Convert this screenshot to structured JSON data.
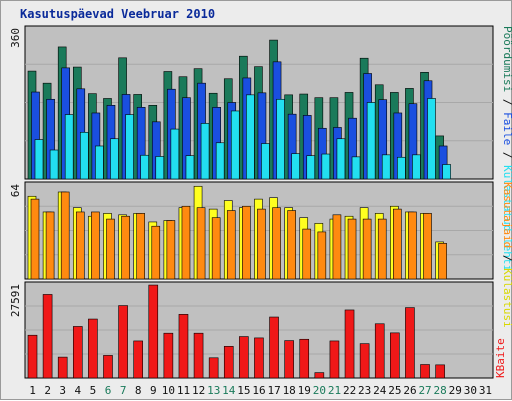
{
  "title": "Kasutuspäevad Veebruar 2010",
  "chart_data": [
    {
      "type": "bar",
      "name_panel": "top",
      "ytick_max": "360",
      "ylim": [
        0,
        380
      ],
      "categories": [
        "1",
        "2",
        "3",
        "4",
        "5",
        "6",
        "7",
        "8",
        "9",
        "10",
        "11",
        "12",
        "13",
        "14",
        "15",
        "16",
        "17",
        "18",
        "19",
        "20",
        "21",
        "22",
        "23",
        "24",
        "25",
        "26",
        "27",
        "28",
        "29",
        "30",
        "31"
      ],
      "series": [
        {
          "name": "Pöördumisi",
          "color": "#1a7a5a",
          "values": [
            268,
            238,
            328,
            278,
            212,
            200,
            301,
            210,
            183,
            267,
            254,
            274,
            213,
            249,
            305,
            279,
            345,
            209,
            211,
            202,
            202,
            215,
            300,
            234,
            215,
            225,
            265,
            107,
            null,
            null,
            null
          ]
        },
        {
          "name": "Faile",
          "color": "#1a4fe0",
          "values": [
            216,
            198,
            276,
            224,
            164,
            183,
            210,
            178,
            142,
            223,
            202,
            238,
            178,
            190,
            251,
            214,
            291,
            161,
            158,
            126,
            128,
            151,
            262,
            197,
            164,
            187,
            244,
            82,
            null,
            null,
            null
          ]
        },
        {
          "name": "Külastatud lehti",
          "color": "#22dff0",
          "values": [
            98,
            72,
            160,
            116,
            82,
            100,
            160,
            59,
            56,
            124,
            58,
            138,
            90,
            169,
            209,
            88,
            198,
            63,
            58,
            62,
            100,
            55,
            190,
            60,
            54,
            60,
            200,
            36,
            null,
            null,
            null
          ]
        }
      ],
      "legend_label": "Pöördumisi / Faile / Külastatud lehti",
      "legend_colors": {
        "Pöördumisi": "#1a7a5a",
        "Faile": "#1a4fe0",
        "Külastatud lehti": "#22dff0"
      }
    },
    {
      "type": "bar",
      "name_panel": "middle",
      "ytick_max": "64",
      "ylim": [
        0,
        68
      ],
      "categories": [
        "1",
        "2",
        "3",
        "4",
        "5",
        "6",
        "7",
        "8",
        "9",
        "10",
        "11",
        "12",
        "13",
        "14",
        "15",
        "16",
        "17",
        "18",
        "19",
        "20",
        "21",
        "22",
        "23",
        "24",
        "25",
        "26",
        "27",
        "28",
        "29",
        "30",
        "31"
      ],
      "series": [
        {
          "name": "Külastusi",
          "color": "#ffff20",
          "values": [
            58,
            47,
            61,
            50,
            44,
            46,
            45,
            46,
            40,
            41,
            50,
            65,
            49,
            55,
            50,
            56,
            57,
            50,
            43,
            39,
            42,
            44,
            50,
            46,
            51,
            47,
            46,
            26,
            null,
            null,
            null
          ]
        },
        {
          "name": "Kasutajaid",
          "color": "#ff8a10",
          "values": [
            56,
            47,
            61,
            47,
            47,
            42,
            44,
            46,
            37,
            41,
            51,
            50,
            43,
            48,
            51,
            49,
            50,
            48,
            35,
            33,
            45,
            42,
            42,
            42,
            49,
            47,
            46,
            25,
            null,
            null,
            null
          ]
        }
      ],
      "legend_label": "Kasutajaid / Külastusi"
    },
    {
      "type": "bar",
      "name_panel": "bottom",
      "ytick_max": "27591",
      "ylim": [
        0,
        28500
      ],
      "categories": [
        "1",
        "2",
        "3",
        "4",
        "5",
        "6",
        "7",
        "8",
        "9",
        "10",
        "11",
        "12",
        "13",
        "14",
        "15",
        "16",
        "17",
        "18",
        "19",
        "20",
        "21",
        "22",
        "23",
        "24",
        "25",
        "26",
        "27",
        "28",
        "29",
        "30",
        "31"
      ],
      "series": [
        {
          "name": "KBaite",
          "color": "#f01818",
          "values": [
            12700,
            24800,
            6200,
            15300,
            17500,
            6700,
            21500,
            11000,
            27591,
            13300,
            18900,
            13300,
            6000,
            9400,
            12300,
            11900,
            18100,
            11100,
            11500,
            1600,
            11000,
            20200,
            10200,
            16100,
            13400,
            20900,
            4000,
            3900,
            null,
            null,
            null
          ]
        }
      ],
      "legend_label": "KBaite"
    }
  ],
  "xaxis": {
    "days": [
      "1",
      "2",
      "3",
      "4",
      "5",
      "6",
      "7",
      "8",
      "9",
      "10",
      "11",
      "12",
      "13",
      "14",
      "15",
      "16",
      "17",
      "18",
      "19",
      "20",
      "21",
      "22",
      "23",
      "24",
      "25",
      "26",
      "27",
      "28",
      "29",
      "30",
      "31"
    ],
    "weekend_days": [
      "6",
      "7",
      "13",
      "14",
      "20",
      "21",
      "27",
      "28"
    ],
    "weekday_color": "#101010",
    "weekend_color": "#1a7a5a"
  },
  "colors": {
    "title": "#0a2a9a",
    "panel_bg": "#c0c0c0",
    "frame_bg": "#ececec"
  }
}
